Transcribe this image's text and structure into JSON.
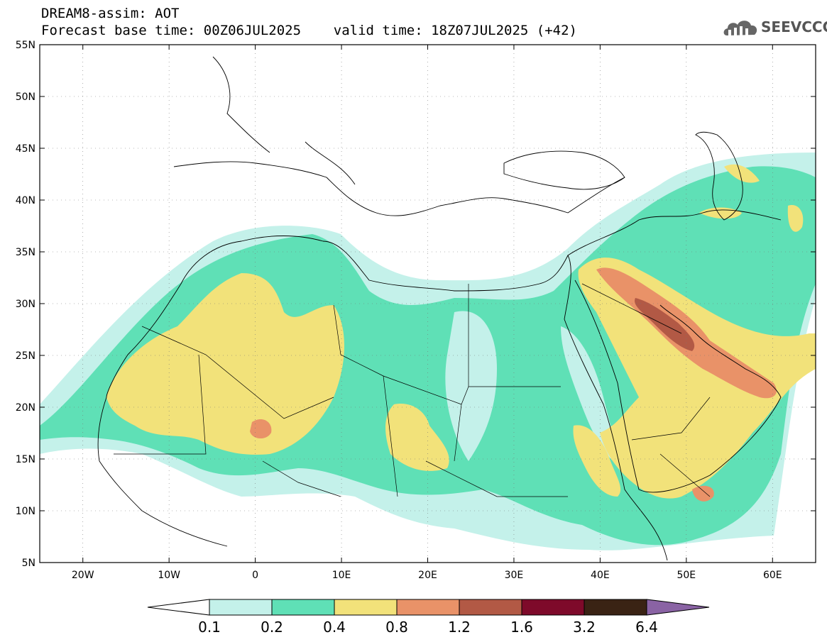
{
  "title": {
    "line1": "DREAM8-assim: AOT",
    "line2": "Forecast base time: 00Z06JUL2025    valid time: 18Z07JUL2025 (+42)"
  },
  "logo": {
    "text": "SEEVCCC",
    "icon": "cloud-icon"
  },
  "map": {
    "lat_ticks": [
      "55N",
      "50N",
      "45N",
      "40N",
      "35N",
      "30N",
      "25N",
      "20N",
      "15N",
      "10N",
      "5N"
    ],
    "lon_ticks": [
      "20W",
      "10W",
      "0",
      "10E",
      "20E",
      "30E",
      "40E",
      "50E",
      "60E"
    ],
    "lon_range": [
      -25,
      65
    ],
    "lat_range": [
      5,
      55
    ]
  },
  "colorbar": {
    "labels": [
      "0.1",
      "0.2",
      "0.4",
      "0.8",
      "1.2",
      "1.6",
      "3.2",
      "6.4"
    ],
    "colors": [
      "#c4f1ea",
      "#5fe0b6",
      "#f2e27a",
      "#e99268",
      "#b25945",
      "#7e0a2a",
      "#3a2314",
      "#8a63a4"
    ],
    "under_color": "#ffffff"
  }
}
